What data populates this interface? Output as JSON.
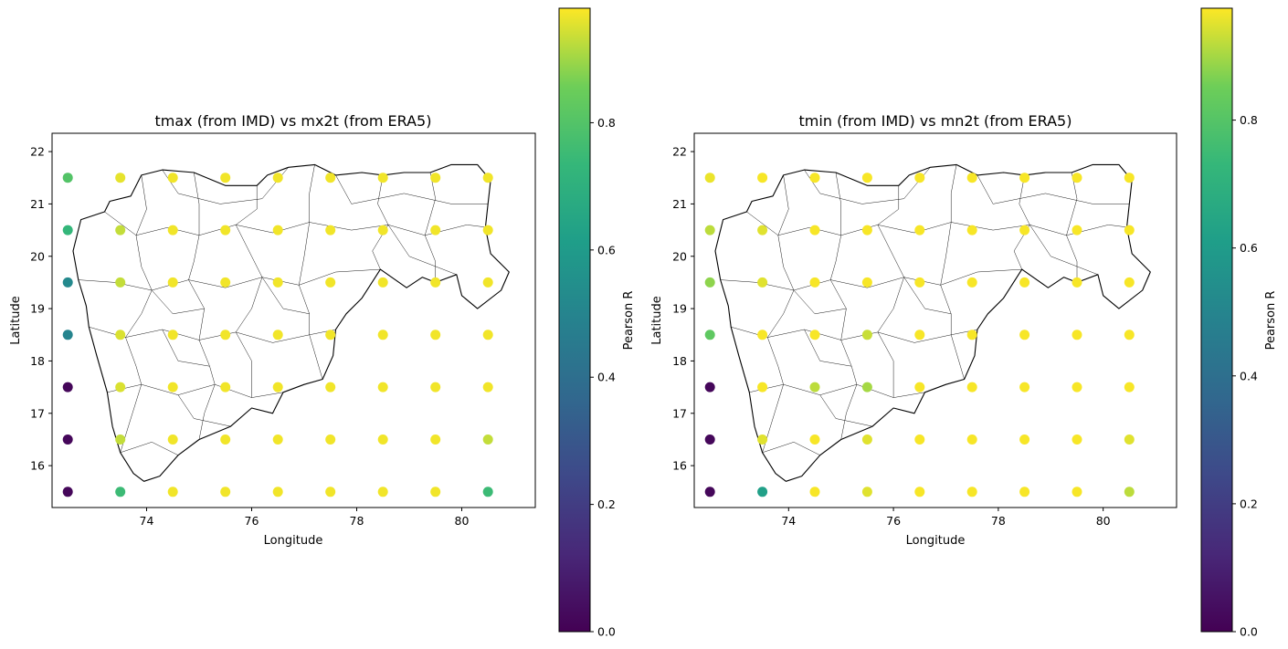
{
  "chart_data": [
    {
      "type": "scatter",
      "title": "tmax (from IMD) vs mx2t (from ERA5)",
      "xlabel": "Longitude",
      "ylabel": "Latitude",
      "xlim": [
        72.2,
        81.4
      ],
      "ylim": [
        15.2,
        22.35
      ],
      "xticks": [
        74,
        76,
        78,
        80
      ],
      "yticks": [
        16,
        17,
        18,
        19,
        20,
        21,
        22
      ],
      "colorbar": {
        "label": "Pearson R",
        "range": [
          0.0,
          0.98
        ],
        "ticks": [
          0.0,
          0.2,
          0.4,
          0.6,
          0.8
        ],
        "colormap": "viridis"
      },
      "background": "district boundary map of Maharashtra",
      "x": [
        72.5,
        73.5,
        74.5,
        75.5,
        76.5,
        77.5,
        78.5,
        79.5,
        80.5
      ],
      "y": [
        21.5,
        20.5,
        19.5,
        18.5,
        17.5,
        16.5,
        15.5
      ],
      "values": [
        [
          0.8,
          0.96,
          0.97,
          0.97,
          0.97,
          0.97,
          0.97,
          0.97,
          0.97
        ],
        [
          0.73,
          0.93,
          0.97,
          0.97,
          0.97,
          0.97,
          0.97,
          0.97,
          0.97
        ],
        [
          0.52,
          0.93,
          0.97,
          0.97,
          0.97,
          0.97,
          0.97,
          0.97,
          0.97
        ],
        [
          0.5,
          0.95,
          0.97,
          0.97,
          0.97,
          0.97,
          0.97,
          0.97,
          0.97
        ],
        [
          0.02,
          0.95,
          0.97,
          0.97,
          0.97,
          0.97,
          0.97,
          0.97,
          0.97
        ],
        [
          0.02,
          0.93,
          0.97,
          0.97,
          0.97,
          0.97,
          0.97,
          0.97,
          0.93
        ],
        [
          0.02,
          0.75,
          0.97,
          0.97,
          0.97,
          0.97,
          0.97,
          0.97,
          0.75
        ]
      ]
    },
    {
      "type": "scatter",
      "title": "tmin (from IMD) vs mn2t (from ERA5)",
      "xlabel": "Longitude",
      "ylabel": "Latitude",
      "xlim": [
        72.2,
        81.4
      ],
      "ylim": [
        15.2,
        22.35
      ],
      "xticks": [
        74,
        76,
        78,
        80
      ],
      "yticks": [
        16,
        17,
        18,
        19,
        20,
        21,
        22
      ],
      "colorbar": {
        "label": "Pearson R",
        "range": [
          0.0,
          0.975
        ],
        "ticks": [
          0.0,
          0.2,
          0.4,
          0.6,
          0.8
        ],
        "colormap": "viridis"
      },
      "background": "district boundary map of Maharashtra",
      "x": [
        72.5,
        73.5,
        74.5,
        75.5,
        76.5,
        77.5,
        78.5,
        79.5,
        80.5
      ],
      "y": [
        21.5,
        20.5,
        19.5,
        18.5,
        17.5,
        16.5,
        15.5
      ],
      "values": [
        [
          0.96,
          0.97,
          0.97,
          0.97,
          0.97,
          0.97,
          0.97,
          0.97,
          0.97
        ],
        [
          0.92,
          0.95,
          0.97,
          0.97,
          0.97,
          0.97,
          0.97,
          0.97,
          0.97
        ],
        [
          0.88,
          0.95,
          0.97,
          0.97,
          0.97,
          0.97,
          0.97,
          0.97,
          0.97
        ],
        [
          0.82,
          0.97,
          0.97,
          0.93,
          0.97,
          0.97,
          0.97,
          0.97,
          0.97
        ],
        [
          0.02,
          0.97,
          0.92,
          0.9,
          0.97,
          0.97,
          0.97,
          0.97,
          0.97
        ],
        [
          0.02,
          0.95,
          0.97,
          0.95,
          0.97,
          0.97,
          0.97,
          0.97,
          0.95
        ],
        [
          0.02,
          0.62,
          0.97,
          0.95,
          0.97,
          0.97,
          0.97,
          0.97,
          0.92
        ]
      ]
    }
  ]
}
